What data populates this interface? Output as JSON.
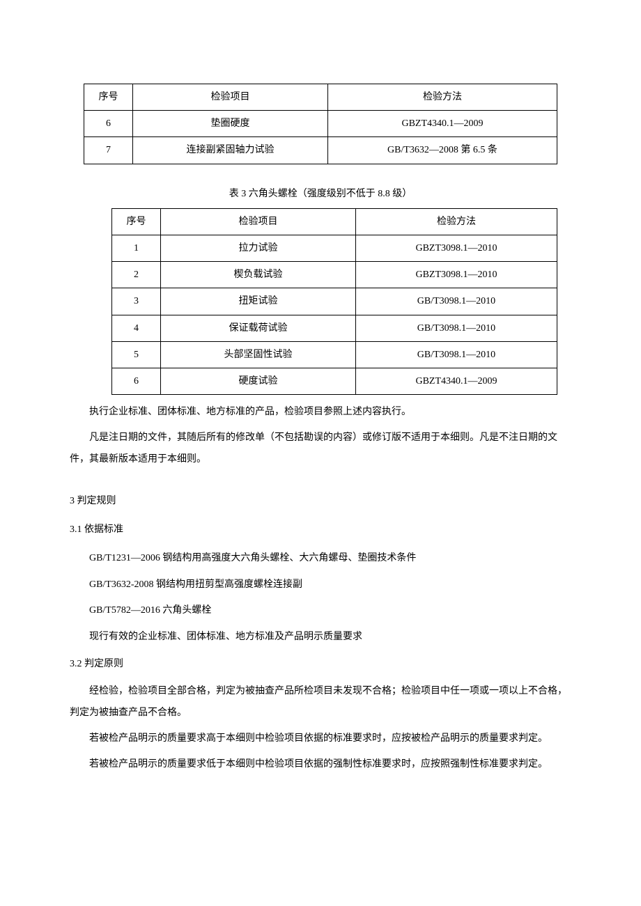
{
  "table1": {
    "headers": {
      "seq": "序号",
      "item": "检验项目",
      "method": "检验方法"
    },
    "rows": [
      {
        "seq": "6",
        "item": "垫圈硬度",
        "method": "GBZT4340.1—2009"
      },
      {
        "seq": "7",
        "item": "连接副紧固轴力试验",
        "method": "GB/T3632—2008 第 6.5 条"
      }
    ]
  },
  "table2": {
    "caption": "表 3 六角头螺栓（强度级别不低于 8.8 级）",
    "headers": {
      "seq": "序号",
      "item": "检验项目",
      "method": "检验方法"
    },
    "rows": [
      {
        "seq": "1",
        "item": "拉力试验",
        "method": "GBZT3098.1—2010"
      },
      {
        "seq": "2",
        "item": "楔负载试验",
        "method": "GBZT3098.1—2010"
      },
      {
        "seq": "3",
        "item": "扭矩试验",
        "method": "GB/T3098.1—2010"
      },
      {
        "seq": "4",
        "item": "保证载荷试验",
        "method": "GB/T3098.1—2010"
      },
      {
        "seq": "5",
        "item": "头部坚固性试验",
        "method": "GB/T3098.1—2010"
      },
      {
        "seq": "6",
        "item": "硬度试验",
        "method": "GBZT4340.1—2009"
      }
    ]
  },
  "body": {
    "p1": "执行企业标准、团体标准、地方标准的产品，检验项目参照上述内容执行。",
    "p2": "凡是注日期的文件，其随后所有的修改单（不包括勘误的内容）或修订版不适用于本细则。凡是不注日期的文件，其最新版本适用于本细则。",
    "s3_title": "3 判定规则",
    "s3_1_title": "3.1  依据标准",
    "s3_1_l1": "GB/T1231—2006 钢结构用高强度大六角头螺栓、大六角螺母、垫圈技术条件",
    "s3_1_l2": "GB/T3632-2008 钢结构用扭剪型高强度螺栓连接副",
    "s3_1_l3": "GB/T5782—2016 六角头螺栓",
    "s3_1_l4": "现行有效的企业标准、团体标准、地方标准及产品明示质量要求",
    "s3_2_title": "3.2  判定原则",
    "s3_2_p1": "经检验，检验项目全部合格，判定为被抽查产品所检项目未发现不合格；检验项目中任一项或一项以上不合格，判定为被抽查产品不合格。",
    "s3_2_p2": "若被检产品明示的质量要求高于本细则中检验项目依据的标准要求时，应按被检产品明示的质量要求判定。",
    "s3_2_p3": "若被检产品明示的质量要求低于本细则中检验项目依据的强制性标准要求时，应按照强制性标准要求判定。"
  }
}
